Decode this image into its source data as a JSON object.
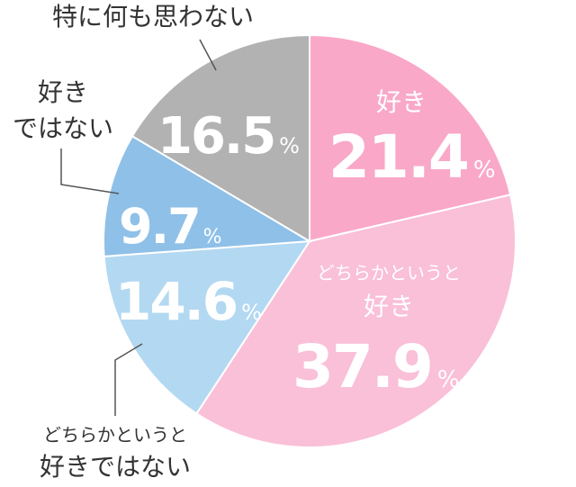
{
  "chart_data": {
    "type": "pie",
    "start": "top, clockwise",
    "unit": "%",
    "slices": [
      {
        "label_lines": [
          "好き"
        ],
        "value": 21.4,
        "value_text": "21.4",
        "color": "#f9a8c8"
      },
      {
        "label_lines": [
          "どちらかというと",
          "好き"
        ],
        "value": 37.9,
        "value_text": "37.9",
        "color": "#f9c0d8"
      },
      {
        "label_lines": [
          "どちらかというと",
          "好きではない"
        ],
        "value": 14.6,
        "value_text": "14.6",
        "color": "#b3d8f2"
      },
      {
        "label_lines": [
          "好き",
          "ではない"
        ],
        "value": 9.7,
        "value_text": "9.7",
        "color": "#8ec0e8"
      },
      {
        "label_lines": [
          "特に何も思わない"
        ],
        "value": 16.5,
        "value_text": "16.5",
        "color": "#b2b2b2"
      }
    ]
  }
}
